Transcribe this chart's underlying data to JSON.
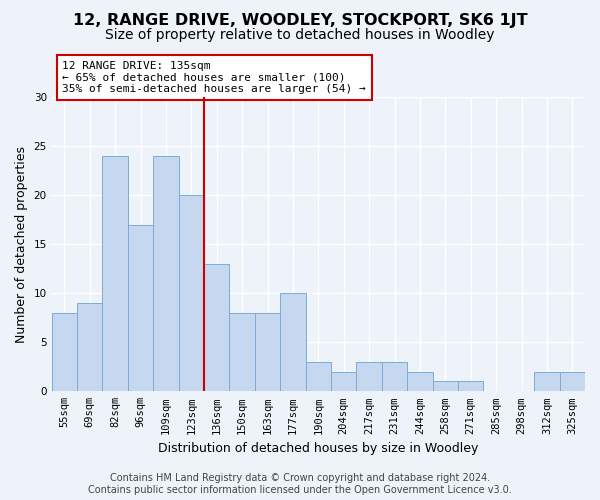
{
  "title": "12, RANGE DRIVE, WOODLEY, STOCKPORT, SK6 1JT",
  "subtitle": "Size of property relative to detached houses in Woodley",
  "xlabel": "Distribution of detached houses by size in Woodley",
  "ylabel": "Number of detached properties",
  "categories": [
    "55sqm",
    "69sqm",
    "82sqm",
    "96sqm",
    "109sqm",
    "123sqm",
    "136sqm",
    "150sqm",
    "163sqm",
    "177sqm",
    "190sqm",
    "204sqm",
    "217sqm",
    "231sqm",
    "244sqm",
    "258sqm",
    "271sqm",
    "285sqm",
    "298sqm",
    "312sqm",
    "325sqm"
  ],
  "values": [
    8,
    9,
    24,
    17,
    24,
    20,
    13,
    8,
    8,
    10,
    3,
    2,
    3,
    3,
    2,
    1,
    1,
    0,
    0,
    2,
    2
  ],
  "bar_color": "#c5d8f0",
  "bar_edge_color": "#7aaed6",
  "marker_bin_index": 6,
  "marker_label": "12 RANGE DRIVE: 135sqm",
  "annotation_line1": "← 65% of detached houses are smaller (100)",
  "annotation_line2": "35% of semi-detached houses are larger (54) →",
  "annotation_box_color": "#ffffff",
  "annotation_box_edge": "#cc0000",
  "marker_line_color": "#cc0000",
  "ylim": [
    0,
    30
  ],
  "yticks": [
    0,
    5,
    10,
    15,
    20,
    25,
    30
  ],
  "footer_line1": "Contains HM Land Registry data © Crown copyright and database right 2024.",
  "footer_line2": "Contains public sector information licensed under the Open Government Licence v3.0.",
  "background_color": "#eef2f9",
  "grid_color": "#ffffff",
  "title_fontsize": 11.5,
  "subtitle_fontsize": 10,
  "axis_label_fontsize": 9,
  "tick_fontsize": 7.5,
  "annotation_fontsize": 8,
  "footer_fontsize": 7
}
